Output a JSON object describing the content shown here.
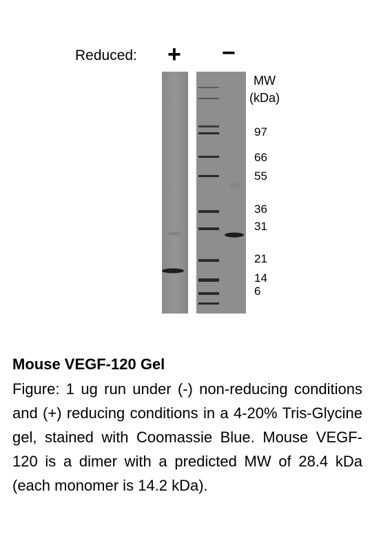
{
  "header": {
    "reduced_label": "Reduced:",
    "lane_plus": "+",
    "lane_minus": "−"
  },
  "mw_labels": {
    "title_line1": "MW",
    "title_line2": "(kDa)",
    "ticks": [
      "97",
      "66",
      "55",
      "36",
      "31",
      "21",
      "14",
      "6"
    ]
  },
  "caption": {
    "title": "Mouse VEGF-120 Gel",
    "body": "Figure: 1 ug run under (-) non-reducing conditions and (+) reducing conditions in a 4-20% Tris-Glycine gel, stained with Coomassie Blue. Mouse VEGF-120 is a dimer with a predicted MW of 28.4 kDa (each monomer is 14.2 kDa)."
  }
}
